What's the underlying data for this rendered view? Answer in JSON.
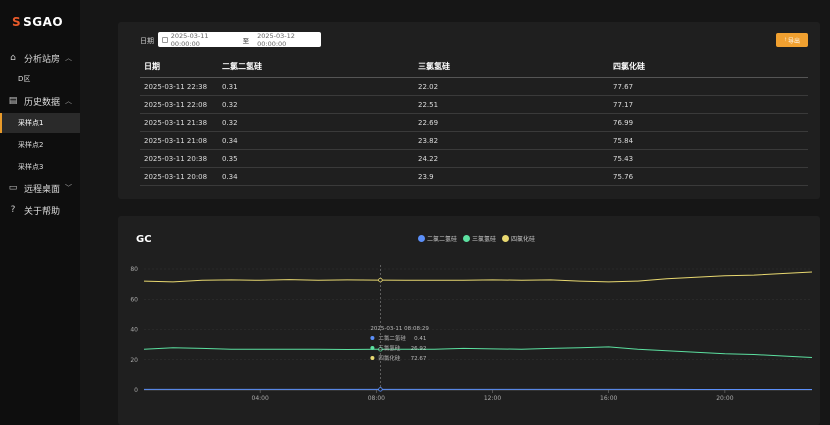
{
  "app": {
    "logo_text": "SGAO",
    "logo_mark": "S"
  },
  "sidebar": {
    "menu1": {
      "label": "分析站房",
      "icon": "home-icon"
    },
    "menu1_sub": {
      "label": "D区"
    },
    "menu2": {
      "label": "历史数据",
      "icon": "document-icon"
    },
    "menu2_subs": [
      {
        "label": "采样点1",
        "active": true
      },
      {
        "label": "采样点2",
        "active": false
      },
      {
        "label": "采样点3",
        "active": false
      }
    ],
    "menu3": {
      "label": "远程桌面",
      "icon": "monitor-icon"
    },
    "menu4": {
      "label": "关于帮助",
      "icon": "help-icon"
    }
  },
  "filter": {
    "date_label": "日期",
    "start": "2025-03-11 00:00:00",
    "separator": "至",
    "end": "2025-03-12 00:00:00",
    "export_label": "导出"
  },
  "table": {
    "headers": [
      "日期",
      "二氯二氢硅",
      "三氯氢硅",
      "四氯化硅"
    ],
    "rows": [
      [
        "2025-03-11 22:38",
        "0.31",
        "22.02",
        "77.67"
      ],
      [
        "2025-03-11 22:08",
        "0.32",
        "22.51",
        "77.17"
      ],
      [
        "2025-03-11 21:38",
        "0.32",
        "22.69",
        "76.99"
      ],
      [
        "2025-03-11 21:08",
        "0.34",
        "23.82",
        "75.84"
      ],
      [
        "2025-03-11 20:38",
        "0.35",
        "24.22",
        "75.43"
      ],
      [
        "2025-03-11 20:08",
        "0.34",
        "23.9",
        "75.76"
      ]
    ]
  },
  "chart_data": {
    "type": "line",
    "title": "GC",
    "legend_position": "top-center",
    "grid": true,
    "ylim": [
      0,
      80
    ],
    "yticks": [
      0,
      20,
      40,
      60,
      80
    ],
    "xlim_hours": [
      0,
      23
    ],
    "xticks": [
      "04:00",
      "08:00",
      "12:00",
      "16:00",
      "20:00"
    ],
    "x_hours": [
      0,
      1,
      2,
      3,
      4,
      5,
      6,
      7,
      8,
      9,
      10,
      11,
      12,
      13,
      14,
      15,
      16,
      17,
      18,
      19,
      20,
      21,
      22,
      23
    ],
    "series": [
      {
        "name": "二氯二氢硅",
        "color": "#5b8ff9",
        "values": [
          0.4,
          0.4,
          0.4,
          0.4,
          0.4,
          0.4,
          0.4,
          0.4,
          0.41,
          0.4,
          0.4,
          0.4,
          0.4,
          0.4,
          0.4,
          0.4,
          0.4,
          0.4,
          0.4,
          0.35,
          0.34,
          0.32,
          0.31,
          0.31
        ]
      },
      {
        "name": "三氯氢硅",
        "color": "#5ce0a0",
        "values": [
          27,
          28,
          27.5,
          27,
          27,
          27,
          27,
          26.8,
          26.9,
          27,
          27,
          27.5,
          27.2,
          27,
          27.5,
          28,
          28.5,
          27,
          26,
          25,
          24,
          23.5,
          22.5,
          21.5
        ]
      },
      {
        "name": "四氯化硅",
        "color": "#e8d870",
        "values": [
          72,
          71.5,
          72.5,
          72.8,
          72.5,
          73,
          72.6,
          72.8,
          72.67,
          72.6,
          72.5,
          72.5,
          72.8,
          72.6,
          72.8,
          72,
          71.5,
          72,
          73.5,
          74.5,
          75.5,
          76,
          77,
          78
        ]
      }
    ],
    "tooltip": {
      "time": "2025-03-11 08:08:29",
      "x_hour": 8.14,
      "items": [
        {
          "name": "二氯二氢硅",
          "value": "0.41"
        },
        {
          "name": "三氯氢硅",
          "value": "26.92"
        },
        {
          "name": "四氯化硅",
          "value": "72.67"
        }
      ]
    }
  }
}
